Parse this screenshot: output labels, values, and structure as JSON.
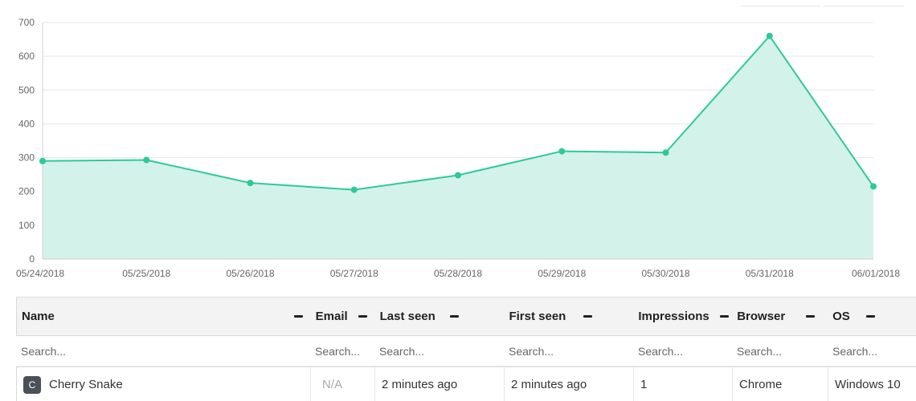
{
  "chart_data": {
    "type": "area",
    "categories": [
      "05/24/2018",
      "05/25/2018",
      "05/26/2018",
      "05/27/2018",
      "05/28/2018",
      "05/29/2018",
      "05/30/2018",
      "05/31/2018",
      "06/01/2018"
    ],
    "values": [
      290,
      293,
      225,
      205,
      248,
      319,
      315,
      660,
      215
    ],
    "ylim": [
      0,
      700
    ],
    "yticks": [
      0,
      100,
      200,
      300,
      400,
      500,
      600,
      700
    ],
    "grid": true,
    "colors": {
      "line": "#2ec99a",
      "fill": "#d3f2ea",
      "grid": "#e6e6e6"
    }
  },
  "table": {
    "headers": {
      "name": "Name",
      "email": "Email",
      "last_seen": "Last seen",
      "first_seen": "First seen",
      "impressions": "Impressions",
      "browser": "Browser",
      "os": "OS"
    },
    "filter_placeholder": "Search...",
    "rows": [
      {
        "avatar": "C",
        "name": "Cherry Snake",
        "email": "N/A",
        "last_seen": "2 minutes ago",
        "first_seen": "2 minutes ago",
        "impressions": "1",
        "browser": "Chrome",
        "os": "Windows 10"
      }
    ]
  }
}
